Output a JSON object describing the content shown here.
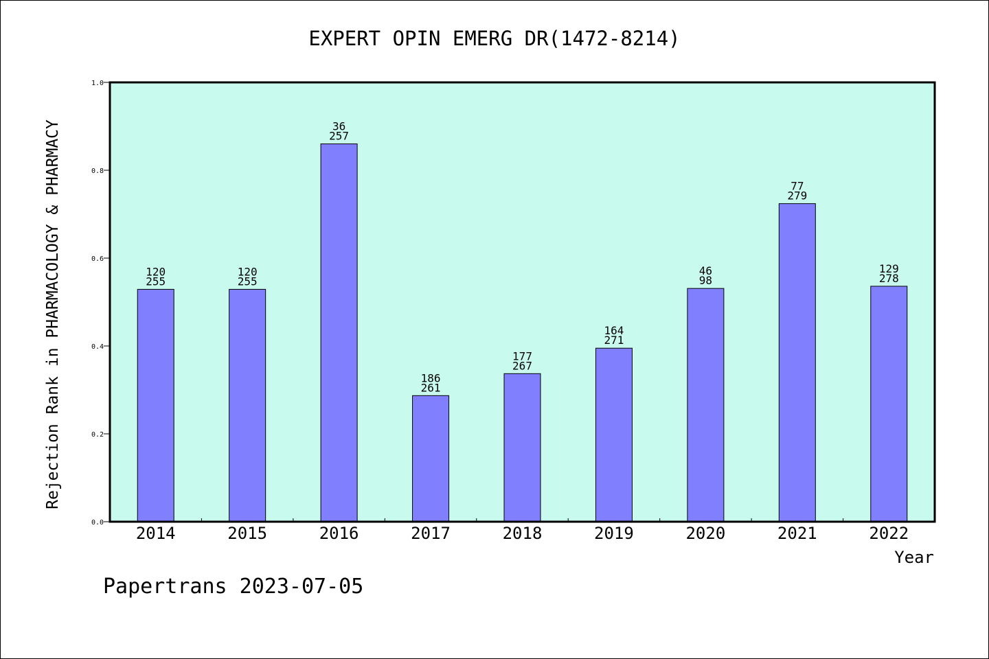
{
  "chart_data": {
    "type": "bar",
    "title": "EXPERT OPIN EMERG DR(1472-8214)",
    "xlabel": "Year",
    "ylabel": "Rejection Rank in PHARMACOLOGY & PHARMACY",
    "ylim": [
      0,
      1
    ],
    "yticks": [
      "0.0",
      "0.2",
      "0.4",
      "0.6",
      "0.8",
      "1.0"
    ],
    "categories": [
      "2014",
      "2015",
      "2016",
      "2017",
      "2018",
      "2019",
      "2020",
      "2021",
      "2022"
    ],
    "values": [
      0.529,
      0.529,
      0.86,
      0.287,
      0.337,
      0.395,
      0.531,
      0.724,
      0.536
    ],
    "labels_top": [
      "120",
      "120",
      "36",
      "186",
      "177",
      "164",
      "46",
      "77",
      "129"
    ],
    "labels_bottom": [
      "255",
      "255",
      "257",
      "261",
      "267",
      "271",
      "98",
      "279",
      "278"
    ],
    "grid": false,
    "plot_background": "#c8fbee",
    "bar_color": "#8080ff"
  },
  "footer": "Papertrans 2023-07-05"
}
